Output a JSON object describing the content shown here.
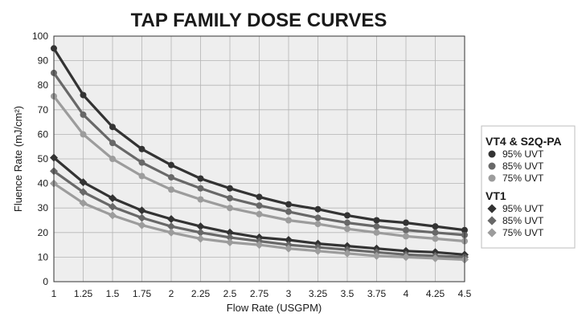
{
  "chart_data": {
    "type": "line",
    "title": "TAP FAMILY DOSE CURVES",
    "xlabel": "Flow Rate (USGPM)",
    "ylabel": "Fluence Rate (mJ/cm²)",
    "x": [
      1,
      1.25,
      1.5,
      1.75,
      2,
      2.25,
      2.5,
      2.75,
      3,
      3.25,
      3.5,
      3.75,
      4,
      4.25,
      4.5
    ],
    "x_tick_labels": [
      "1",
      "1.25",
      "1.5",
      "1.75",
      "2",
      "2.25",
      "2.5",
      "2.75",
      "3",
      "3.25",
      "3.5",
      "3.75",
      "4",
      "4.25",
      "4.5"
    ],
    "y_ticks": [
      0,
      10,
      20,
      30,
      40,
      50,
      60,
      70,
      80,
      90,
      100
    ],
    "ylim": [
      0,
      100
    ],
    "xlim": [
      1,
      4.5
    ],
    "grid": true,
    "legend_position": "right",
    "groups": [
      {
        "name": "VT4 & S2Q-PA",
        "marker": "circle",
        "series": [
          {
            "name": "95% UVT",
            "color": "#333333",
            "values": [
              95,
              76,
              63,
              54,
              47.5,
              42,
              38,
              34.5,
              31.5,
              29.5,
              27,
              25,
              24,
              22.5,
              21
            ]
          },
          {
            "name": "85% UVT",
            "color": "#686868",
            "values": [
              85,
              68,
              56.5,
              48.5,
              42.5,
              38,
              34,
              31,
              28.5,
              26,
              24,
              22.5,
              21,
              20,
              19
            ]
          },
          {
            "name": "75% UVT",
            "color": "#9c9c9c",
            "values": [
              75.5,
              60,
              50,
              43,
              37.5,
              33.5,
              30,
              27.5,
              25,
              23.5,
              21.5,
              20,
              18.5,
              17.5,
              16.5
            ]
          }
        ]
      },
      {
        "name": "VT1",
        "marker": "diamond",
        "series": [
          {
            "name": "95% UVT",
            "color": "#333333",
            "values": [
              50.5,
              40.5,
              34,
              29,
              25.5,
              22.5,
              20,
              18,
              17,
              15.5,
              14.5,
              13.5,
              12.5,
              12,
              11
            ]
          },
          {
            "name": "85% UVT",
            "color": "#686868",
            "values": [
              45,
              36.5,
              30.5,
              26,
              22.5,
              20,
              18,
              16.5,
              15,
              14,
              13,
              12,
              11,
              10.5,
              10
            ]
          },
          {
            "name": "75% UVT",
            "color": "#9c9c9c",
            "values": [
              40,
              32,
              27,
              23,
              20,
              17.5,
              16,
              15,
              13.5,
              12.5,
              11.5,
              10.5,
              10,
              9.5,
              9
            ]
          }
        ]
      }
    ]
  }
}
